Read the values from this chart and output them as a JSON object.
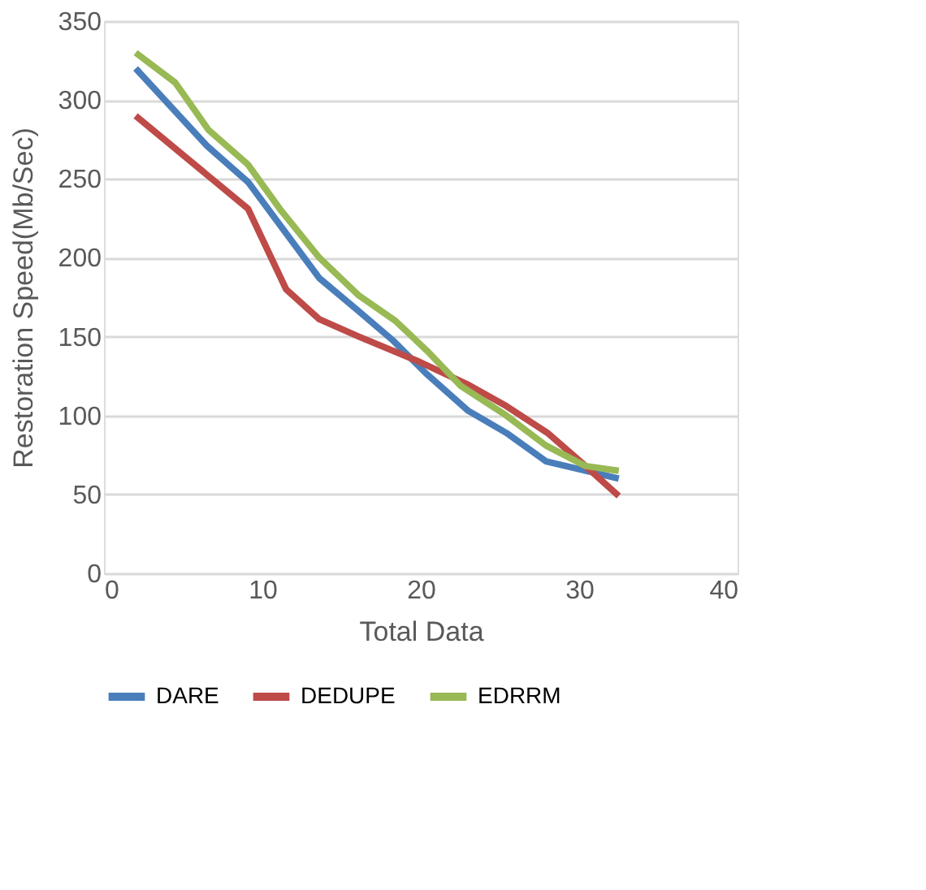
{
  "chart_data": {
    "type": "line",
    "xlabel": "Total Data",
    "ylabel": "Restoration Speed(Mb/Sec)",
    "xlim": [
      0,
      40
    ],
    "xticks": [
      0,
      10,
      20,
      30,
      40
    ],
    "ylim": [
      0,
      350
    ],
    "yticks": [
      0,
      50,
      100,
      150,
      200,
      250,
      300,
      350
    ],
    "grid": "y",
    "legend": "bottom",
    "marker": "none",
    "line_style": "solid",
    "series": [
      {
        "name": "DARE",
        "color": "#4a7ebb",
        "x": [
          2,
          6.5,
          9.1,
          13.6,
          16.1,
          18.2,
          20.3,
          23,
          25.4,
          27.9,
          30.4,
          32.5
        ],
        "values": [
          320,
          271,
          248,
          187,
          166,
          148,
          127,
          103,
          89,
          71,
          65,
          60
        ]
      },
      {
        "name": "DEDUPE",
        "color": "#be4b48",
        "x": [
          2,
          9.1,
          11.5,
          13.6,
          16.1,
          19.7,
          22.9,
          25.4,
          28,
          30.4,
          32.5
        ],
        "values": [
          290,
          231,
          180,
          161,
          150,
          135,
          120,
          106,
          89,
          68,
          49
        ]
      },
      {
        "name": "EDRRM",
        "color": "#98b954",
        "x": [
          2,
          4.5,
          6.6,
          9.1,
          11.1,
          13.6,
          16.1,
          18.4,
          20.4,
          22.5,
          25.4,
          27.9,
          30.4,
          32.5
        ],
        "values": [
          330,
          311,
          281,
          259,
          231,
          200,
          176,
          160,
          141,
          119,
          100,
          81,
          68,
          65
        ]
      }
    ]
  }
}
